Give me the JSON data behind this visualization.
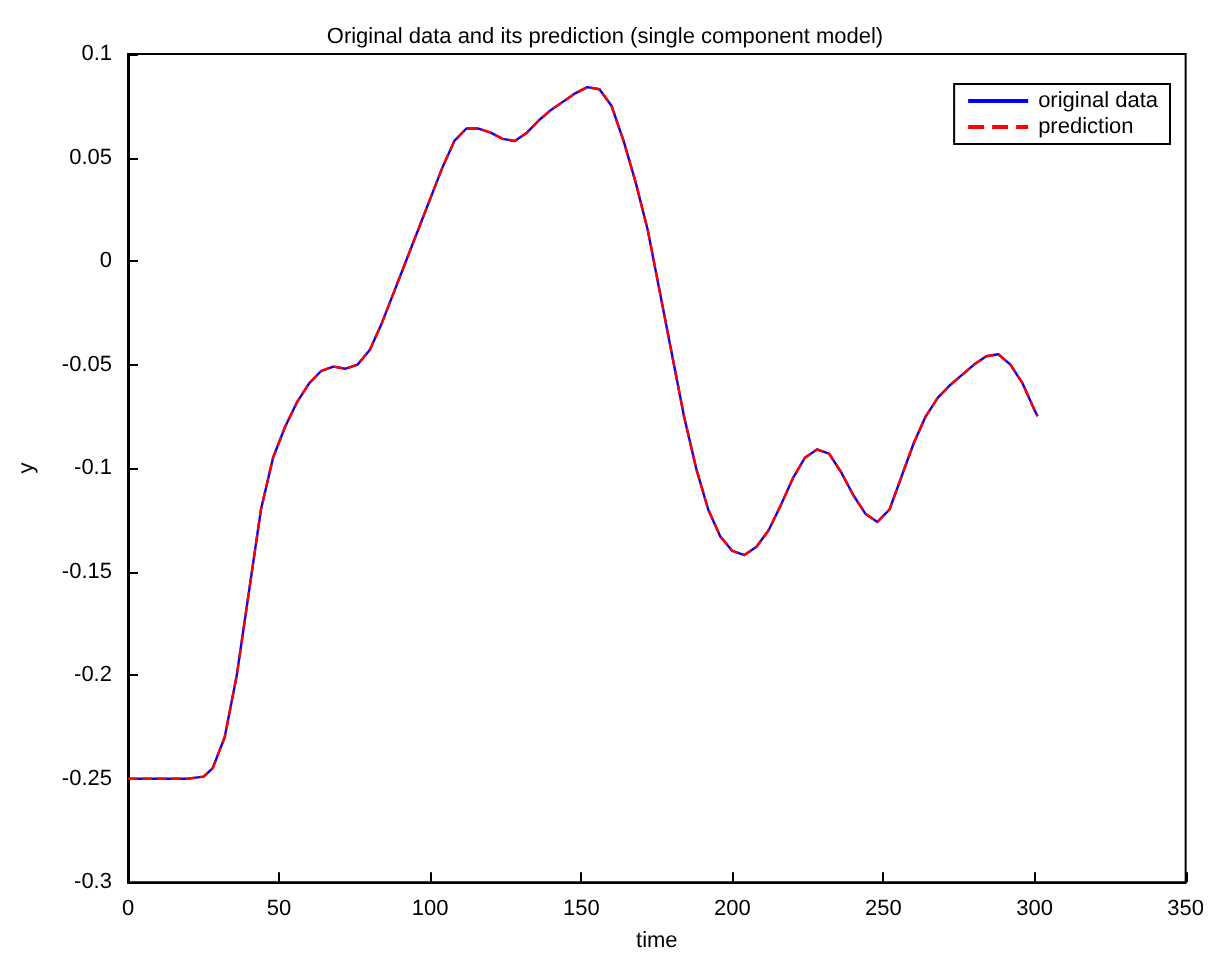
{
  "chart_data": {
    "type": "line",
    "title": "Original data and its prediction (single component model)",
    "xlabel": "time",
    "ylabel": "y",
    "x": [
      0,
      10,
      20,
      25,
      28,
      32,
      36,
      40,
      44,
      48,
      52,
      56,
      60,
      64,
      68,
      72,
      76,
      80,
      84,
      88,
      92,
      96,
      100,
      104,
      108,
      112,
      116,
      120,
      124,
      128,
      132,
      136,
      140,
      144,
      148,
      152,
      156,
      160,
      164,
      168,
      172,
      176,
      180,
      184,
      188,
      192,
      196,
      200,
      204,
      208,
      212,
      216,
      220,
      224,
      228,
      232,
      236,
      240,
      244,
      248,
      252,
      256,
      260,
      264,
      268,
      272,
      276,
      280,
      284,
      288,
      292,
      296,
      300,
      301
    ],
    "series": [
      {
        "name": "original data",
        "color": "#0000ff",
        "line_style": "solid",
        "values": [
          -0.25,
          -0.25,
          -0.25,
          -0.249,
          -0.245,
          -0.23,
          -0.2,
          -0.16,
          -0.12,
          -0.095,
          -0.08,
          -0.068,
          -0.059,
          -0.053,
          -0.051,
          -0.052,
          -0.05,
          -0.043,
          -0.03,
          -0.015,
          0.0,
          0.015,
          0.03,
          0.045,
          0.058,
          0.064,
          0.064,
          0.062,
          0.059,
          0.058,
          0.062,
          0.068,
          0.073,
          0.077,
          0.081,
          0.084,
          0.083,
          0.075,
          0.058,
          0.038,
          0.015,
          -0.015,
          -0.045,
          -0.075,
          -0.1,
          -0.12,
          -0.133,
          -0.14,
          -0.142,
          -0.138,
          -0.13,
          -0.118,
          -0.105,
          -0.095,
          -0.091,
          -0.093,
          -0.102,
          -0.113,
          -0.122,
          -0.126,
          -0.12,
          -0.104,
          -0.088,
          -0.075,
          -0.066,
          -0.06,
          -0.055,
          -0.05,
          -0.046,
          -0.045,
          -0.05,
          -0.059,
          -0.072,
          -0.075
        ]
      },
      {
        "name": "prediction",
        "color": "#ff0000",
        "line_style": "dashed",
        "values": [
          -0.25,
          -0.25,
          -0.25,
          -0.249,
          -0.245,
          -0.23,
          -0.2,
          -0.16,
          -0.12,
          -0.095,
          -0.08,
          -0.068,
          -0.059,
          -0.053,
          -0.051,
          -0.052,
          -0.05,
          -0.043,
          -0.03,
          -0.015,
          0.0,
          0.015,
          0.03,
          0.045,
          0.058,
          0.064,
          0.064,
          0.062,
          0.059,
          0.058,
          0.062,
          0.068,
          0.073,
          0.077,
          0.081,
          0.084,
          0.083,
          0.075,
          0.058,
          0.038,
          0.015,
          -0.015,
          -0.045,
          -0.075,
          -0.1,
          -0.12,
          -0.133,
          -0.14,
          -0.142,
          -0.138,
          -0.13,
          -0.118,
          -0.105,
          -0.095,
          -0.091,
          -0.093,
          -0.102,
          -0.113,
          -0.122,
          -0.126,
          -0.12,
          -0.104,
          -0.088,
          -0.075,
          -0.066,
          -0.06,
          -0.055,
          -0.05,
          -0.046,
          -0.045,
          -0.05,
          -0.059,
          -0.072,
          -0.075
        ]
      }
    ],
    "xlim": [
      0,
      350
    ],
    "xticks": [
      0,
      50,
      100,
      150,
      200,
      250,
      300,
      350
    ],
    "ylim": [
      -0.3,
      0.1
    ],
    "yticks": [
      -0.3,
      -0.25,
      -0.2,
      -0.15,
      -0.1,
      -0.05,
      0,
      0.05,
      0.1
    ],
    "grid": false,
    "legend": "top right",
    "marker": "none"
  }
}
